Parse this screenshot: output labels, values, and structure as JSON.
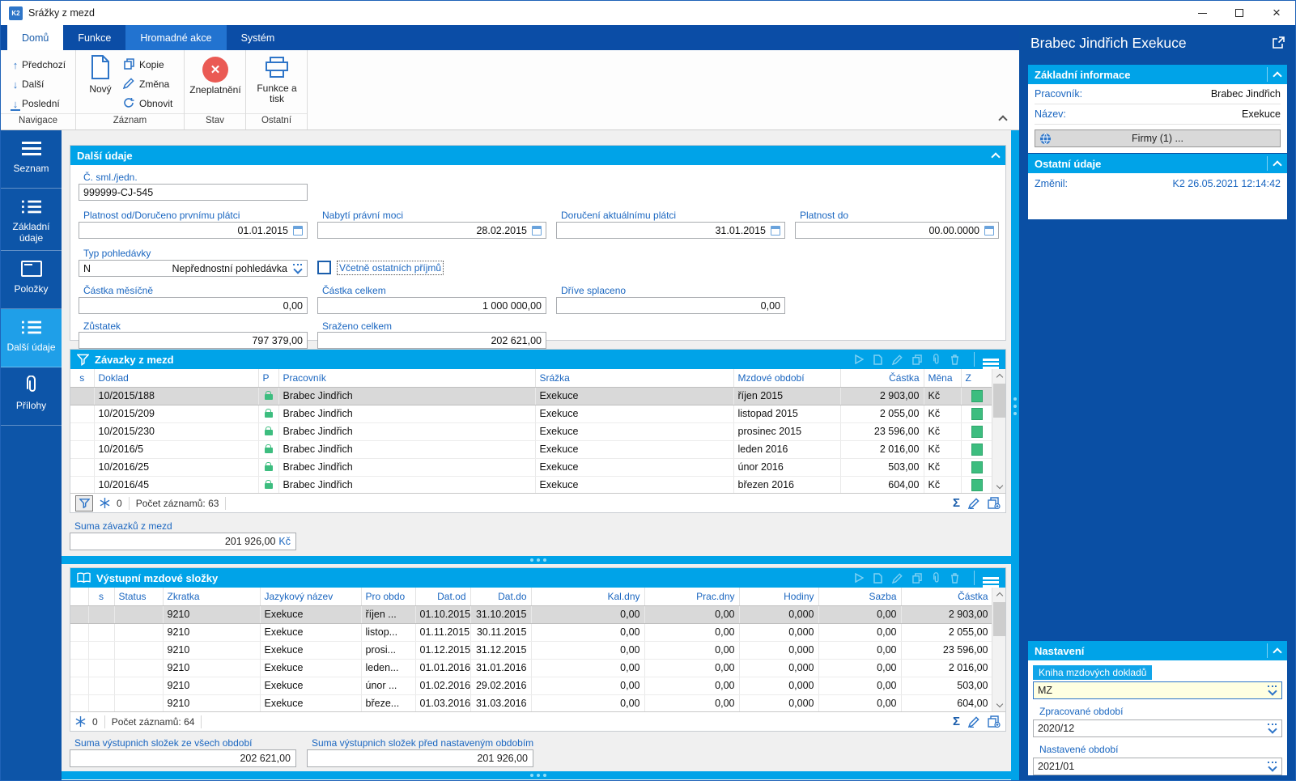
{
  "colors": {
    "accent": "#00a3e8",
    "dark_blue": "#0d55a8",
    "ribbon_blue": "#0b4da6",
    "green": "#3dbd7f",
    "red": "#ea5a54",
    "label_blue": "#1a66c0",
    "input_yellow": "#ffffe1"
  },
  "window": {
    "title": "Srážky z mezd",
    "icon_text": "K2"
  },
  "ribbon": {
    "tabs": [
      {
        "label": "Domů"
      },
      {
        "label": "Funkce"
      },
      {
        "label": "Hromadné akce"
      },
      {
        "label": "Systém"
      }
    ],
    "navigace": {
      "label": "Navigace",
      "items": [
        "Předchozí",
        "Další",
        "Poslední"
      ]
    },
    "zaznam": {
      "label": "Záznam",
      "new_label": "Nový",
      "items": [
        "Kopie",
        "Změna",
        "Obnovit"
      ]
    },
    "stav": {
      "label": "Stav",
      "item": "Zneplatnění"
    },
    "ostatni": {
      "label": "Ostatní",
      "item": "Funkce a tisk"
    }
  },
  "sidebar": {
    "items": [
      {
        "label": "Seznam"
      },
      {
        "label": "Základní údaje"
      },
      {
        "label": "Položky"
      },
      {
        "label": "Další údaje"
      },
      {
        "label": "Přílohy"
      }
    ]
  },
  "form": {
    "title": "Další údaje",
    "cislo": {
      "label": "Č. sml./jedn.",
      "value": "999999-CJ-545"
    },
    "platnost_od": {
      "label": "Platnost od/Doručeno prvnímu plátci",
      "value": "01.01.2015"
    },
    "nabyti": {
      "label": "Nabytí právní moci",
      "value": "28.02.2015"
    },
    "doruceni": {
      "label": "Doručení aktuálnímu plátci",
      "value": "31.01.2015"
    },
    "platnost_do": {
      "label": "Platnost do",
      "value": "00.00.0000"
    },
    "typ": {
      "label": "Typ pohledávky",
      "code": "N",
      "value": "Nepřednostní pohledávka"
    },
    "vcetne": {
      "label": "Včetně ostatních příjmů",
      "checked": false
    },
    "castka_mesicne": {
      "label": "Částka měsíčně",
      "value": "0,00"
    },
    "castka_celkem": {
      "label": "Částka celkem",
      "value": "1 000 000,00"
    },
    "drive_splaceno": {
      "label": "Dříve splaceno",
      "value": "0,00"
    },
    "zustatek": {
      "label": "Zůstatek",
      "value": "797 379,00"
    },
    "srazeno": {
      "label": "Sraženo celkem",
      "value": "202 621,00"
    }
  },
  "liabilities": {
    "title": "Závazky z mezd",
    "columns": [
      "s",
      "Doklad",
      "P",
      "Pracovník",
      "Srážka",
      "Mzdové období",
      "Částka",
      "Měna",
      "Z"
    ],
    "rows": [
      {
        "doklad": "10/2015/188",
        "pracovnik": "Brabec Jindřich",
        "srazka": "Exekuce",
        "obdobi": "říjen 2015",
        "castka": "2 903,00",
        "mena": "Kč"
      },
      {
        "doklad": "10/2015/209",
        "pracovnik": "Brabec Jindřich",
        "srazka": "Exekuce",
        "obdobi": "listopad 2015",
        "castka": "2 055,00",
        "mena": "Kč"
      },
      {
        "doklad": "10/2015/230",
        "pracovnik": "Brabec Jindřich",
        "srazka": "Exekuce",
        "obdobi": "prosinec 2015",
        "castka": "23 596,00",
        "mena": "Kč"
      },
      {
        "doklad": "10/2016/5",
        "pracovnik": "Brabec Jindřich",
        "srazka": "Exekuce",
        "obdobi": "leden 2016",
        "castka": "2 016,00",
        "mena": "Kč"
      },
      {
        "doklad": "10/2016/25",
        "pracovnik": "Brabec Jindřich",
        "srazka": "Exekuce",
        "obdobi": "únor 2016",
        "castka": "503,00",
        "mena": "Kč"
      },
      {
        "doklad": "10/2016/45",
        "pracovnik": "Brabec Jindřich",
        "srazka": "Exekuce",
        "obdobi": "březen 2016",
        "castka": "604,00",
        "mena": "Kč"
      }
    ],
    "footer": {
      "frozen": "0",
      "records": "Počet záznamů: 63"
    },
    "sum": {
      "label": "Suma závazků z mezd",
      "value": "201 926,00",
      "currency": "Kč"
    }
  },
  "components": {
    "title": "Výstupní mzdové složky",
    "columns": [
      "",
      "s",
      "Status",
      "Zkratka",
      "Jazykový název",
      "Pro obdo",
      "Dat.od",
      "Dat.do",
      "Kal.dny",
      "Prac.dny",
      "Hodiny",
      "Sazba",
      "Částka"
    ],
    "rows": [
      {
        "zkratka": "9210",
        "nazev": "Exekuce",
        "obdobi": "říjen ...",
        "od": "01.10.2015",
        "do": "31.10.2015",
        "kal": "0,00",
        "prac": "0,00",
        "hodiny": "0,000",
        "sazba": "0,00",
        "castka": "2 903,00"
      },
      {
        "zkratka": "9210",
        "nazev": "Exekuce",
        "obdobi": "listop...",
        "od": "01.11.2015",
        "do": "30.11.2015",
        "kal": "0,00",
        "prac": "0,00",
        "hodiny": "0,000",
        "sazba": "0,00",
        "castka": "2 055,00"
      },
      {
        "zkratka": "9210",
        "nazev": "Exekuce",
        "obdobi": "prosi...",
        "od": "01.12.2015",
        "do": "31.12.2015",
        "kal": "0,00",
        "prac": "0,00",
        "hodiny": "0,000",
        "sazba": "0,00",
        "castka": "23 596,00"
      },
      {
        "zkratka": "9210",
        "nazev": "Exekuce",
        "obdobi": "leden...",
        "od": "01.01.2016",
        "do": "31.01.2016",
        "kal": "0,00",
        "prac": "0,00",
        "hodiny": "0,000",
        "sazba": "0,00",
        "castka": "2 016,00"
      },
      {
        "zkratka": "9210",
        "nazev": "Exekuce",
        "obdobi": "únor ...",
        "od": "01.02.2016",
        "do": "29.02.2016",
        "kal": "0,00",
        "prac": "0,00",
        "hodiny": "0,000",
        "sazba": "0,00",
        "castka": "503,00"
      },
      {
        "zkratka": "9210",
        "nazev": "Exekuce",
        "obdobi": "březe...",
        "od": "01.03.2016",
        "do": "31.03.2016",
        "kal": "0,00",
        "prac": "0,00",
        "hodiny": "0,000",
        "sazba": "0,00",
        "castka": "604,00"
      }
    ],
    "footer": {
      "frozen": "0",
      "records": "Počet záznamů: 64"
    },
    "sum_all": {
      "label": "Suma výstupnich složek ze všech období",
      "value": "202 621,00"
    },
    "sum_before": {
      "label": "Suma výstupnich složek před nastaveným obdobím",
      "value": "201 926,00"
    }
  },
  "right_panel": {
    "title": "Brabec Jindřich Exekuce",
    "zakladni": {
      "title": "Základní informace",
      "rows": [
        {
          "label": "Pracovník:",
          "value": "Brabec Jindřich"
        },
        {
          "label": "Název:",
          "value": "Exekuce"
        }
      ],
      "button": "Firmy (1) ..."
    },
    "ostatni": {
      "title": "Ostatní údaje",
      "rows": [
        {
          "label": "Změnil:",
          "value": "K2 26.05.2021 12:14:42"
        }
      ]
    },
    "nastaveni": {
      "title": "Nastavení",
      "fields": [
        {
          "label": "Kniha mzdových dokladů",
          "value": "MZ"
        },
        {
          "label": "Zpracované období",
          "value": "2020/12"
        },
        {
          "label": "Nastavené období",
          "value": "2021/01"
        }
      ]
    }
  }
}
